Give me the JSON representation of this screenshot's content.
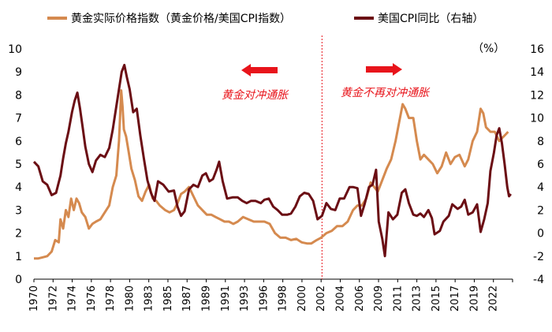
{
  "chart_data": {
    "type": "line",
    "series": [
      {
        "name": "黄金实际价格指数（黄金价格/美国CPI指数）",
        "axis": "left",
        "color": "#d58a4f",
        "points": [
          [
            1970.0,
            0.9
          ],
          [
            1970.5,
            0.9
          ],
          [
            1971.0,
            0.95
          ],
          [
            1971.5,
            1.0
          ],
          [
            1972.0,
            1.2
          ],
          [
            1972.4,
            1.7
          ],
          [
            1972.8,
            1.6
          ],
          [
            1973.0,
            2.6
          ],
          [
            1973.3,
            2.2
          ],
          [
            1973.6,
            3.0
          ],
          [
            1973.9,
            2.7
          ],
          [
            1974.2,
            3.5
          ],
          [
            1974.5,
            3.0
          ],
          [
            1974.8,
            3.5
          ],
          [
            1975.1,
            3.3
          ],
          [
            1975.4,
            2.9
          ],
          [
            1975.8,
            2.7
          ],
          [
            1976.2,
            2.2
          ],
          [
            1976.6,
            2.4
          ],
          [
            1977.0,
            2.5
          ],
          [
            1977.5,
            2.6
          ],
          [
            1978.0,
            2.9
          ],
          [
            1978.5,
            3.2
          ],
          [
            1978.9,
            4.0
          ],
          [
            1979.3,
            4.5
          ],
          [
            1979.6,
            6.0
          ],
          [
            1979.85,
            8.2
          ],
          [
            1980.0,
            7.5
          ],
          [
            1980.15,
            6.5
          ],
          [
            1980.4,
            6.2
          ],
          [
            1980.7,
            5.5
          ],
          [
            1981.0,
            4.8
          ],
          [
            1981.4,
            4.3
          ],
          [
            1981.8,
            3.6
          ],
          [
            1982.2,
            3.4
          ],
          [
            1982.6,
            3.8
          ],
          [
            1983.0,
            4.1
          ],
          [
            1983.4,
            3.5
          ],
          [
            1983.8,
            3.4
          ],
          [
            1984.2,
            3.2
          ],
          [
            1984.8,
            3.0
          ],
          [
            1985.3,
            2.9
          ],
          [
            1985.8,
            3.0
          ],
          [
            1986.2,
            3.3
          ],
          [
            1986.6,
            3.7
          ],
          [
            1987.0,
            3.8
          ],
          [
            1987.5,
            4.0
          ],
          [
            1988.0,
            3.6
          ],
          [
            1988.5,
            3.2
          ],
          [
            1989.0,
            3.0
          ],
          [
            1989.5,
            2.8
          ],
          [
            1990.0,
            2.8
          ],
          [
            1990.5,
            2.7
          ],
          [
            1991.0,
            2.6
          ],
          [
            1991.5,
            2.5
          ],
          [
            1992.0,
            2.5
          ],
          [
            1992.5,
            2.4
          ],
          [
            1993.0,
            2.5
          ],
          [
            1993.6,
            2.7
          ],
          [
            1994.2,
            2.6
          ],
          [
            1994.8,
            2.5
          ],
          [
            1995.5,
            2.5
          ],
          [
            1996.0,
            2.5
          ],
          [
            1996.6,
            2.4
          ],
          [
            1997.2,
            2.0
          ],
          [
            1997.8,
            1.8
          ],
          [
            1998.4,
            1.8
          ],
          [
            1999.0,
            1.7
          ],
          [
            1999.6,
            1.75
          ],
          [
            2000.2,
            1.6
          ],
          [
            2000.8,
            1.55
          ],
          [
            2001.3,
            1.55
          ],
          [
            2001.9,
            1.7
          ],
          [
            2002.4,
            1.8
          ],
          [
            2003.0,
            2.0
          ],
          [
            2003.6,
            2.1
          ],
          [
            2004.2,
            2.3
          ],
          [
            2004.8,
            2.3
          ],
          [
            2005.4,
            2.5
          ],
          [
            2006.0,
            3.0
          ],
          [
            2006.5,
            3.2
          ],
          [
            2007.0,
            3.2
          ],
          [
            2007.5,
            3.5
          ],
          [
            2008.0,
            4.2
          ],
          [
            2008.4,
            4.0
          ],
          [
            2008.8,
            3.8
          ],
          [
            2009.2,
            4.2
          ],
          [
            2009.8,
            4.8
          ],
          [
            2010.3,
            5.2
          ],
          [
            2010.8,
            6.0
          ],
          [
            2011.2,
            6.8
          ],
          [
            2011.6,
            7.6
          ],
          [
            2011.9,
            7.4
          ],
          [
            2012.3,
            7.0
          ],
          [
            2012.8,
            7.0
          ],
          [
            2013.2,
            6.0
          ],
          [
            2013.6,
            5.2
          ],
          [
            2014.0,
            5.4
          ],
          [
            2014.5,
            5.2
          ],
          [
            2015.0,
            5.0
          ],
          [
            2015.5,
            4.6
          ],
          [
            2016.0,
            4.9
          ],
          [
            2016.5,
            5.5
          ],
          [
            2017.0,
            5.0
          ],
          [
            2017.5,
            5.3
          ],
          [
            2018.0,
            5.4
          ],
          [
            2018.6,
            4.9
          ],
          [
            2019.0,
            5.2
          ],
          [
            2019.5,
            6.0
          ],
          [
            2020.0,
            6.4
          ],
          [
            2020.4,
            7.4
          ],
          [
            2020.7,
            7.2
          ],
          [
            2021.0,
            6.6
          ],
          [
            2021.5,
            6.4
          ],
          [
            2022.0,
            6.4
          ],
          [
            2022.5,
            6.0
          ],
          [
            2023.0,
            6.2
          ],
          [
            2023.5,
            6.4
          ]
        ]
      },
      {
        "name": "美国CPI同比（右轴）",
        "axis": "right",
        "color": "#6b0e14",
        "points": [
          [
            1970.0,
            6.2
          ],
          [
            1970.5,
            5.8
          ],
          [
            1971.0,
            4.5
          ],
          [
            1971.5,
            4.2
          ],
          [
            1972.0,
            3.3
          ],
          [
            1972.5,
            3.5
          ],
          [
            1973.0,
            5.0
          ],
          [
            1973.3,
            6.5
          ],
          [
            1973.6,
            7.8
          ],
          [
            1973.9,
            8.8
          ],
          [
            1974.3,
            10.5
          ],
          [
            1974.6,
            11.5
          ],
          [
            1974.9,
            12.2
          ],
          [
            1975.2,
            10.8
          ],
          [
            1975.5,
            9.2
          ],
          [
            1975.8,
            7.5
          ],
          [
            1976.2,
            6.0
          ],
          [
            1976.6,
            5.3
          ],
          [
            1977.0,
            6.3
          ],
          [
            1977.5,
            6.8
          ],
          [
            1978.0,
            6.6
          ],
          [
            1978.5,
            7.4
          ],
          [
            1978.9,
            9.0
          ],
          [
            1979.3,
            11.0
          ],
          [
            1979.6,
            12.5
          ],
          [
            1979.9,
            14.0
          ],
          [
            1980.2,
            14.6
          ],
          [
            1980.5,
            13.5
          ],
          [
            1980.8,
            12.5
          ],
          [
            1981.2,
            10.5
          ],
          [
            1981.6,
            10.8
          ],
          [
            1982.0,
            8.5
          ],
          [
            1982.4,
            6.5
          ],
          [
            1982.8,
            4.6
          ],
          [
            1983.2,
            3.5
          ],
          [
            1983.6,
            2.8
          ],
          [
            1984.0,
            4.5
          ],
          [
            1984.6,
            4.2
          ],
          [
            1985.2,
            3.6
          ],
          [
            1985.8,
            3.7
          ],
          [
            1986.2,
            2.3
          ],
          [
            1986.6,
            1.5
          ],
          [
            1987.0,
            1.9
          ],
          [
            1987.5,
            3.8
          ],
          [
            1988.0,
            4.2
          ],
          [
            1988.5,
            4.0
          ],
          [
            1989.0,
            5.0
          ],
          [
            1989.4,
            5.2
          ],
          [
            1989.8,
            4.5
          ],
          [
            1990.2,
            4.7
          ],
          [
            1990.6,
            5.5
          ],
          [
            1990.9,
            6.2
          ],
          [
            1991.3,
            4.5
          ],
          [
            1991.8,
            3.0
          ],
          [
            1992.4,
            3.1
          ],
          [
            1993.0,
            3.1
          ],
          [
            1993.5,
            2.8
          ],
          [
            1994.0,
            2.6
          ],
          [
            1994.5,
            2.8
          ],
          [
            1995.0,
            2.8
          ],
          [
            1995.6,
            2.6
          ],
          [
            1996.0,
            2.9
          ],
          [
            1996.5,
            3.0
          ],
          [
            1997.0,
            2.3
          ],
          [
            1997.5,
            2.0
          ],
          [
            1998.0,
            1.6
          ],
          [
            1998.6,
            1.6
          ],
          [
            1999.0,
            1.7
          ],
          [
            1999.5,
            2.3
          ],
          [
            2000.0,
            3.2
          ],
          [
            2000.5,
            3.5
          ],
          [
            2001.0,
            3.4
          ],
          [
            2001.5,
            2.8
          ],
          [
            2002.0,
            1.2
          ],
          [
            2002.5,
            1.5
          ],
          [
            2003.0,
            2.6
          ],
          [
            2003.5,
            2.1
          ],
          [
            2004.0,
            2.0
          ],
          [
            2004.5,
            3.0
          ],
          [
            2005.0,
            3.0
          ],
          [
            2005.6,
            4.0
          ],
          [
            2006.0,
            4.0
          ],
          [
            2006.5,
            3.9
          ],
          [
            2006.9,
            1.5
          ],
          [
            2007.3,
            2.5
          ],
          [
            2007.8,
            4.0
          ],
          [
            2008.2,
            4.2
          ],
          [
            2008.6,
            5.5
          ],
          [
            2008.9,
            1.0
          ],
          [
            2009.3,
            -0.5
          ],
          [
            2009.6,
            -2.0
          ],
          [
            2010.0,
            1.8
          ],
          [
            2010.5,
            1.2
          ],
          [
            2011.0,
            1.6
          ],
          [
            2011.5,
            3.5
          ],
          [
            2011.9,
            3.8
          ],
          [
            2012.3,
            2.6
          ],
          [
            2012.8,
            1.6
          ],
          [
            2013.2,
            1.5
          ],
          [
            2013.6,
            1.7
          ],
          [
            2014.0,
            1.4
          ],
          [
            2014.5,
            2.0
          ],
          [
            2014.9,
            1.3
          ],
          [
            2015.2,
            -0.1
          ],
          [
            2015.8,
            0.2
          ],
          [
            2016.2,
            1.0
          ],
          [
            2016.8,
            1.5
          ],
          [
            2017.2,
            2.5
          ],
          [
            2017.8,
            2.1
          ],
          [
            2018.2,
            2.3
          ],
          [
            2018.6,
            2.9
          ],
          [
            2019.0,
            1.6
          ],
          [
            2019.5,
            1.8
          ],
          [
            2020.0,
            2.5
          ],
          [
            2020.4,
            0.1
          ],
          [
            2020.8,
            1.2
          ],
          [
            2021.2,
            2.6
          ],
          [
            2021.5,
            5.4
          ],
          [
            2021.9,
            7.0
          ],
          [
            2022.2,
            8.5
          ],
          [
            2022.5,
            9.1
          ],
          [
            2022.8,
            7.8
          ],
          [
            2023.1,
            6.0
          ],
          [
            2023.4,
            4.0
          ],
          [
            2023.6,
            3.2
          ],
          [
            2023.8,
            3.4
          ]
        ]
      }
    ],
    "x_ticks": [
      "1970",
      "1972",
      "1974",
      "1976",
      "1978",
      "1980",
      "1983",
      "1985",
      "1987",
      "1989",
      "1991",
      "1993",
      "1996",
      "1998",
      "2000",
      "2002",
      "2004",
      "2006",
      "2009",
      "2011",
      "2013",
      "2015",
      "2017",
      "2019",
      "2022"
    ],
    "y_left": {
      "ticks": [
        "0",
        "1",
        "2",
        "3",
        "4",
        "5",
        "6",
        "7",
        "8",
        "9",
        "10"
      ],
      "range": [
        0,
        10
      ]
    },
    "y_right": {
      "unit": "（%）",
      "ticks": [
        "-4",
        "-2",
        "0",
        "2",
        "4",
        "6",
        "8",
        "10",
        "12",
        "14",
        "16"
      ],
      "range": [
        -4,
        16
      ]
    },
    "x_range": [
      1970,
      2024.0
    ],
    "divider_x": 2002.5,
    "annotations": [
      {
        "text": "黄金对冲通胀",
        "arrow": "left",
        "color": "#e8141b"
      },
      {
        "text": "黄金不再对冲通胀",
        "arrow": "right",
        "color": "#e8141b"
      }
    ],
    "legend_placement": "top"
  }
}
